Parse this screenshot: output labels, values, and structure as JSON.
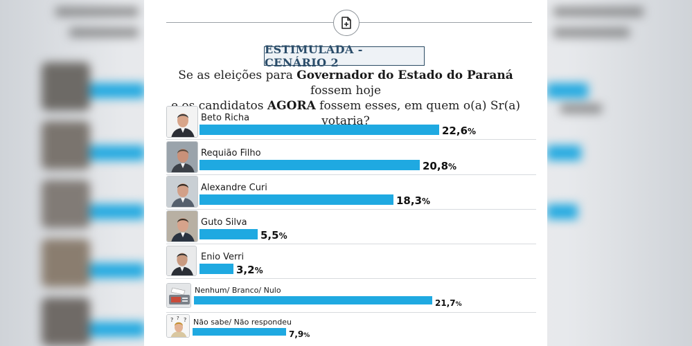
{
  "chart_data": {
    "type": "bar",
    "title": "ESTIMULADA - CENÁRIO 2",
    "question": {
      "part1": "Se as eleições para ",
      "bold1": "Governador do Estado do Paraná",
      "part2": " fossem hoje",
      "part3": "e os candidatos ",
      "bold2": "AGORA",
      "part4": " fossem esses, em quem o(a) Sr(a) votaria?"
    },
    "categories": [
      "Beto Richa",
      "Requião Filho",
      "Alexandre Curi",
      "Guto Silva",
      "Enio Verri",
      "Nenhum/ Branco/ Nulo",
      "Não sabe/ Não respondeu"
    ],
    "values": [
      22.6,
      20.8,
      18.3,
      5.5,
      3.2,
      21.7,
      7.9
    ],
    "value_labels": [
      "22,6",
      "20,8",
      "18,3",
      "5,5",
      "3,2",
      "21,7",
      "7,9"
    ],
    "unit": "%",
    "bar_color": "#1fa9e1"
  },
  "header": {
    "icon": "document-plus-icon"
  }
}
